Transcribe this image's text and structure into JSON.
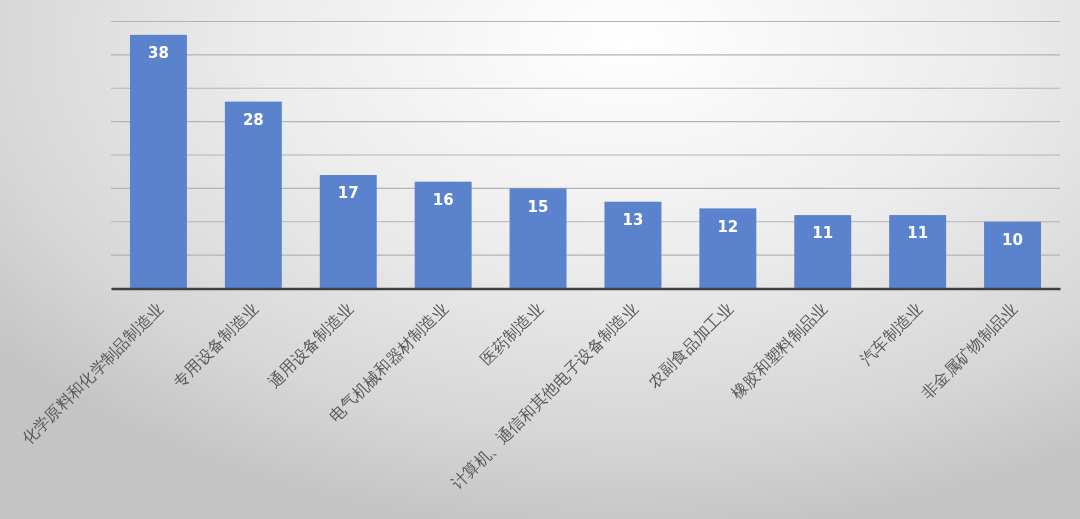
{
  "chart_data": {
    "type": "bar",
    "categories": [
      "化学原料和化学制品制造业",
      "专用设备制造业",
      "通用设备制造业",
      "电气机械和器材制造业",
      "医药制造业",
      "计算机、通信和其他电子设备制造业",
      "农副食品加工业",
      "橡胶和塑料制品业",
      "汽车制造业",
      "非金属矿物制品业"
    ],
    "values": [
      38,
      28,
      17,
      16,
      15,
      13,
      12,
      11,
      11,
      10
    ],
    "color": "#5b82cc",
    "ylim": [
      0,
      40
    ],
    "yticks": [
      {
        "value": 0,
        "label": null
      },
      {
        "value": 5,
        "label": null
      },
      {
        "value": 10,
        "label": null
      },
      {
        "value": 15,
        "label": null
      },
      {
        "value": 20,
        "label": null
      },
      {
        "value": 25,
        "label": null
      },
      {
        "value": 30,
        "label": null
      },
      {
        "value": 35,
        "label": null
      },
      {
        "value": 40,
        "label": null
      }
    ],
    "grid": "y",
    "data_labels": true,
    "tick_labels": "x"
  }
}
